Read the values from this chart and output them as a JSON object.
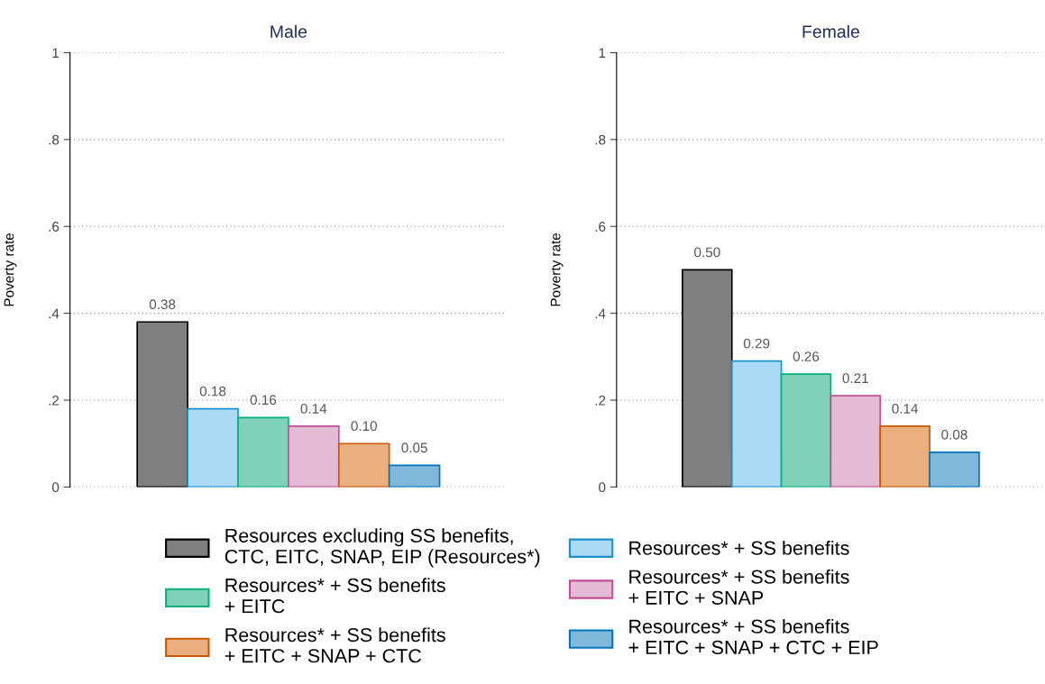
{
  "chart_data": [
    {
      "type": "bar",
      "title": "Male",
      "ylabel": "Poverty rate",
      "categories": [
        null
      ],
      "ylim": [
        0,
        1
      ],
      "yticks": [
        0,
        {
          "value": 0.2,
          "label": ".2"
        },
        {
          "value": 0.4,
          "label": ".4"
        },
        {
          "value": 0.6,
          "label": ".6"
        },
        {
          "value": 0.8,
          "label": ".8"
        },
        1
      ],
      "grid": "y",
      "legend": "bottom",
      "tick_labels": "y",
      "series": [
        {
          "name": "Resources excluding SS benefits,\nCTC, EITC, SNAP, EIP (Resources*)",
          "color": "#808080",
          "values": [
            0.38
          ],
          "value_labels": [
            "0.38"
          ]
        },
        {
          "name": "Resources* + SS benefits",
          "color": "#aadaf4",
          "values": [
            0.18
          ],
          "value_labels": [
            "0.18"
          ]
        },
        {
          "name": "Resources* + SS benefits\n+ EITC",
          "color": "#7fd1b7",
          "values": [
            0.16
          ],
          "value_labels": [
            "0.16"
          ]
        },
        {
          "name": "Resources* + SS benefits\n+ EITC + SNAP",
          "color": "#e4bbd4",
          "values": [
            0.14
          ],
          "value_labels": [
            "0.14"
          ]
        },
        {
          "name": "Resources* + SS benefits\n+ EITC + SNAP + CTC",
          "color": "#ebae7e",
          "values": [
            0.1
          ],
          "value_labels": [
            "0.10"
          ]
        },
        {
          "name": "Resources* + SS benefits\n+ EITC + SNAP + CTC + EIP",
          "color": "#7fb8da",
          "values": [
            0.05
          ],
          "value_labels": [
            "0.05"
          ]
        }
      ]
    },
    {
      "type": "bar",
      "title": "Female",
      "ylabel": "Poverty rate",
      "categories": [
        null
      ],
      "ylim": [
        0,
        1
      ],
      "yticks": [
        0,
        {
          "value": 0.2,
          "label": ".2"
        },
        {
          "value": 0.4,
          "label": ".4"
        },
        {
          "value": 0.6,
          "label": ".6"
        },
        {
          "value": 0.8,
          "label": ".8"
        },
        1
      ],
      "grid": "y",
      "tick_labels": "y",
      "series": [
        {
          "color": "#808080",
          "values": [
            0.5
          ],
          "value_labels": [
            "0.50"
          ]
        },
        {
          "color": "#aadaf4",
          "values": [
            0.29
          ],
          "value_labels": [
            "0.29"
          ]
        },
        {
          "color": "#7fd1b7",
          "values": [
            0.26
          ],
          "value_labels": [
            "0.26"
          ]
        },
        {
          "color": "#e4bbd4",
          "values": [
            0.21
          ],
          "value_labels": [
            "0.21"
          ]
        },
        {
          "color": "#ebae7e",
          "values": [
            0.14
          ],
          "value_labels": [
            "0.14"
          ]
        },
        {
          "color": "#7fb8da",
          "values": [
            0.08
          ],
          "value_labels": [
            "0.08"
          ]
        }
      ]
    }
  ]
}
